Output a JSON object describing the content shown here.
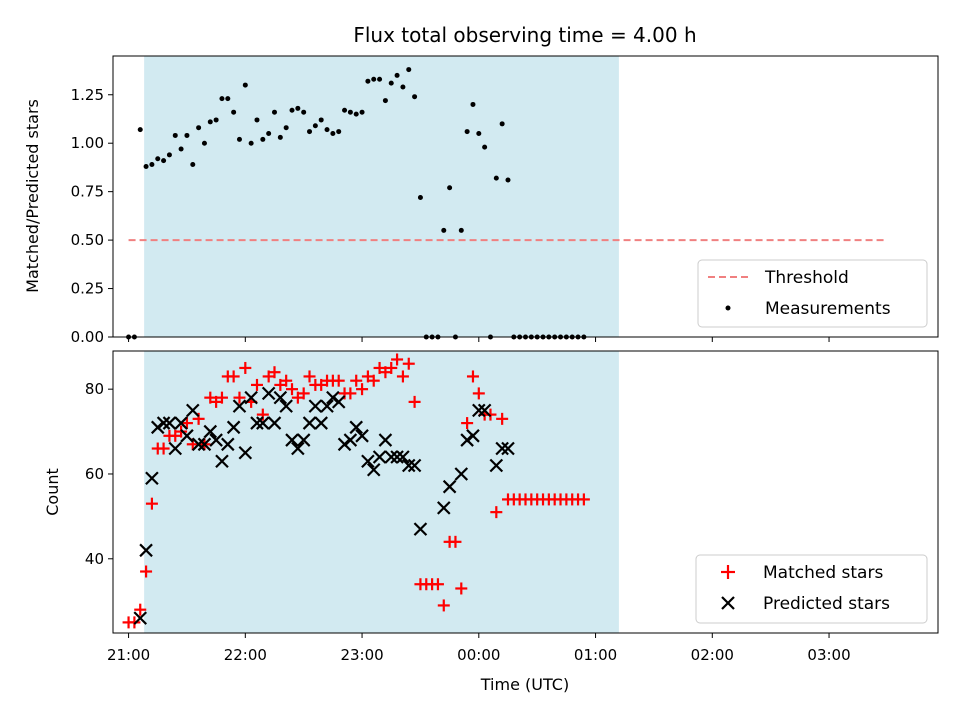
{
  "chart_data": [
    {
      "type": "scatter",
      "title": "Flux total observing time = 4.00 h",
      "xlabel": "",
      "ylabel": "Matched/Predicted stars",
      "ylim": [
        0,
        1.45
      ],
      "yticks": [
        "0.00",
        "0.25",
        "0.50",
        "0.75",
        "1.00",
        "1.25"
      ],
      "xlim": [
        "20:52",
        "03:56"
      ],
      "shaded_interval": [
        "21:08",
        "01:12"
      ],
      "shade_color": "#add8e6",
      "legend_placement": "lower-right",
      "legend": [
        "Threshold",
        "Measurements"
      ],
      "threshold": {
        "name": "Threshold",
        "y": 0.5,
        "x_from": "21:00",
        "x_to": "03:30",
        "color": "#f08080",
        "style": "dashed"
      },
      "series": [
        {
          "name": "Measurements",
          "color": "#000000",
          "marker": "dot",
          "points": [
            [
              "21:00",
              0
            ],
            [
              "21:03",
              0
            ],
            [
              "21:06",
              1.07
            ],
            [
              "21:09",
              0.88
            ],
            [
              "21:12",
              0.89
            ],
            [
              "21:15",
              0.92
            ],
            [
              "21:18",
              0.91
            ],
            [
              "21:21",
              0.94
            ],
            [
              "21:24",
              1.04
            ],
            [
              "21:27",
              0.97
            ],
            [
              "21:30",
              1.04
            ],
            [
              "21:33",
              0.89
            ],
            [
              "21:36",
              1.08
            ],
            [
              "21:39",
              1.0
            ],
            [
              "21:42",
              1.11
            ],
            [
              "21:45",
              1.12
            ],
            [
              "21:48",
              1.23
            ],
            [
              "21:51",
              1.23
            ],
            [
              "21:54",
              1.16
            ],
            [
              "21:57",
              1.02
            ],
            [
              "22:00",
              1.3
            ],
            [
              "22:03",
              1.0
            ],
            [
              "22:06",
              1.12
            ],
            [
              "22:09",
              1.02
            ],
            [
              "22:12",
              1.05
            ],
            [
              "22:15",
              1.16
            ],
            [
              "22:18",
              1.03
            ],
            [
              "22:21",
              1.08
            ],
            [
              "22:24",
              1.17
            ],
            [
              "22:27",
              1.18
            ],
            [
              "22:30",
              1.16
            ],
            [
              "22:33",
              1.06
            ],
            [
              "22:36",
              1.09
            ],
            [
              "22:39",
              1.12
            ],
            [
              "22:42",
              1.07
            ],
            [
              "22:45",
              1.05
            ],
            [
              "22:48",
              1.06
            ],
            [
              "22:51",
              1.17
            ],
            [
              "22:54",
              1.16
            ],
            [
              "22:57",
              1.15
            ],
            [
              "23:00",
              1.16
            ],
            [
              "23:03",
              1.32
            ],
            [
              "23:06",
              1.33
            ],
            [
              "23:09",
              1.33
            ],
            [
              "23:12",
              1.22
            ],
            [
              "23:15",
              1.31
            ],
            [
              "23:18",
              1.35
            ],
            [
              "23:21",
              1.29
            ],
            [
              "23:24",
              1.38
            ],
            [
              "23:27",
              1.24
            ],
            [
              "23:30",
              0.72
            ],
            [
              "23:33",
              0
            ],
            [
              "23:36",
              0
            ],
            [
              "23:39",
              0
            ],
            [
              "23:42",
              0.55
            ],
            [
              "23:45",
              0.77
            ],
            [
              "23:48",
              0
            ],
            [
              "23:51",
              0.55
            ],
            [
              "23:54",
              1.06
            ],
            [
              "23:57",
              1.2
            ],
            [
              "00:00",
              1.05
            ],
            [
              "00:03",
              0.98
            ],
            [
              "00:06",
              0
            ],
            [
              "00:09",
              0.82
            ],
            [
              "00:12",
              1.1
            ],
            [
              "00:15",
              0.81
            ],
            [
              "00:18",
              0
            ],
            [
              "00:21",
              0
            ],
            [
              "00:24",
              0
            ],
            [
              "00:27",
              0
            ],
            [
              "00:30",
              0
            ],
            [
              "00:33",
              0
            ],
            [
              "00:36",
              0
            ],
            [
              "00:39",
              0
            ],
            [
              "00:42",
              0
            ],
            [
              "00:45",
              0
            ],
            [
              "00:48",
              0
            ],
            [
              "00:51",
              0
            ],
            [
              "00:54",
              0
            ]
          ]
        }
      ]
    },
    {
      "type": "scatter",
      "title": "",
      "xlabel": "Time (UTC)",
      "ylabel": "Count",
      "ylim": [
        22.5,
        89
      ],
      "yticks": [
        "40",
        "60",
        "80"
      ],
      "xticks": [
        "21:00",
        "22:00",
        "23:00",
        "00:00",
        "01:00",
        "02:00",
        "03:00"
      ],
      "xlim": [
        "20:52",
        "03:56"
      ],
      "shaded_interval": [
        "21:08",
        "01:12"
      ],
      "shade_color": "#add8e6",
      "legend_placement": "lower-right",
      "legend": [
        "Matched stars",
        "Predicted stars"
      ],
      "series": [
        {
          "name": "Matched stars",
          "color": "#ff0000",
          "marker": "plus",
          "points": [
            [
              "21:00",
              25
            ],
            [
              "21:03",
              25
            ],
            [
              "21:06",
              28
            ],
            [
              "21:09",
              37
            ],
            [
              "21:12",
              53
            ],
            [
              "21:15",
              66
            ],
            [
              "21:18",
              66
            ],
            [
              "21:21",
              69
            ],
            [
              "21:24",
              69
            ],
            [
              "21:27",
              70
            ],
            [
              "21:30",
              72
            ],
            [
              "21:33",
              67
            ],
            [
              "21:36",
              73
            ],
            [
              "21:39",
              67
            ],
            [
              "21:42",
              78
            ],
            [
              "21:45",
              77
            ],
            [
              "21:48",
              78
            ],
            [
              "21:51",
              83
            ],
            [
              "21:54",
              83
            ],
            [
              "21:57",
              78
            ],
            [
              "22:00",
              85
            ],
            [
              "22:03",
              77
            ],
            [
              "22:06",
              81
            ],
            [
              "22:09",
              74
            ],
            [
              "22:12",
              83
            ],
            [
              "22:15",
              84
            ],
            [
              "22:18",
              81
            ],
            [
              "22:21",
              82
            ],
            [
              "22:24",
              80
            ],
            [
              "22:27",
              78
            ],
            [
              "22:30",
              79
            ],
            [
              "22:33",
              83
            ],
            [
              "22:36",
              81
            ],
            [
              "22:39",
              81
            ],
            [
              "22:42",
              82
            ],
            [
              "22:45",
              82
            ],
            [
              "22:48",
              82
            ],
            [
              "22:51",
              79
            ],
            [
              "22:54",
              79
            ],
            [
              "22:57",
              82
            ],
            [
              "23:00",
              80
            ],
            [
              "23:03",
              83
            ],
            [
              "23:06",
              82
            ],
            [
              "23:09",
              85
            ],
            [
              "23:12",
              84
            ],
            [
              "23:15",
              85
            ],
            [
              "23:18",
              87
            ],
            [
              "23:21",
              83
            ],
            [
              "23:24",
              86
            ],
            [
              "23:27",
              77
            ],
            [
              "23:30",
              34
            ],
            [
              "23:33",
              34
            ],
            [
              "23:36",
              34
            ],
            [
              "23:39",
              34
            ],
            [
              "23:42",
              29
            ],
            [
              "23:45",
              44
            ],
            [
              "23:48",
              44
            ],
            [
              "23:51",
              33
            ],
            [
              "23:54",
              72
            ],
            [
              "23:57",
              83
            ],
            [
              "00:00",
              79
            ],
            [
              "00:03",
              74
            ],
            [
              "00:06",
              74
            ],
            [
              "00:09",
              51
            ],
            [
              "00:12",
              73
            ],
            [
              "00:15",
              54
            ],
            [
              "00:18",
              54
            ],
            [
              "00:21",
              54
            ],
            [
              "00:24",
              54
            ],
            [
              "00:27",
              54
            ],
            [
              "00:30",
              54
            ],
            [
              "00:33",
              54
            ],
            [
              "00:36",
              54
            ],
            [
              "00:39",
              54
            ],
            [
              "00:42",
              54
            ],
            [
              "00:45",
              54
            ],
            [
              "00:48",
              54
            ],
            [
              "00:51",
              54
            ],
            [
              "00:54",
              54
            ]
          ]
        },
        {
          "name": "Predicted stars",
          "color": "#000000",
          "marker": "x",
          "points": [
            [
              "21:06",
              26
            ],
            [
              "21:09",
              42
            ],
            [
              "21:12",
              59
            ],
            [
              "21:15",
              71
            ],
            [
              "21:18",
              72
            ],
            [
              "21:21",
              72
            ],
            [
              "21:24",
              66
            ],
            [
              "21:27",
              72
            ],
            [
              "21:30",
              69
            ],
            [
              "21:33",
              75
            ],
            [
              "21:36",
              67
            ],
            [
              "21:39",
              67
            ],
            [
              "21:42",
              70
            ],
            [
              "21:45",
              68
            ],
            [
              "21:48",
              63
            ],
            [
              "21:51",
              67
            ],
            [
              "21:54",
              71
            ],
            [
              "21:57",
              76
            ],
            [
              "22:00",
              65
            ],
            [
              "22:03",
              78
            ],
            [
              "22:06",
              72
            ],
            [
              "22:09",
              72
            ],
            [
              "22:12",
              79
            ],
            [
              "22:15",
              72
            ],
            [
              "22:18",
              78
            ],
            [
              "22:21",
              76
            ],
            [
              "22:24",
              68
            ],
            [
              "22:27",
              66
            ],
            [
              "22:30",
              68
            ],
            [
              "22:33",
              72
            ],
            [
              "22:36",
              76
            ],
            [
              "22:39",
              72
            ],
            [
              "22:42",
              76
            ],
            [
              "22:45",
              78
            ],
            [
              "22:48",
              77
            ],
            [
              "22:51",
              67
            ],
            [
              "22:54",
              68
            ],
            [
              "22:57",
              71
            ],
            [
              "23:00",
              69
            ],
            [
              "23:03",
              63
            ],
            [
              "23:06",
              61
            ],
            [
              "23:09",
              64
            ],
            [
              "23:12",
              68
            ],
            [
              "23:15",
              64
            ],
            [
              "23:18",
              64
            ],
            [
              "23:21",
              64
            ],
            [
              "23:24",
              62
            ],
            [
              "23:27",
              62
            ],
            [
              "23:30",
              47
            ],
            [
              "23:42",
              52
            ],
            [
              "23:45",
              57
            ],
            [
              "23:51",
              60
            ],
            [
              "23:54",
              68
            ],
            [
              "23:57",
              69
            ],
            [
              "00:00",
              75
            ],
            [
              "00:03",
              75
            ],
            [
              "00:09",
              62
            ],
            [
              "00:12",
              66
            ],
            [
              "00:15",
              66
            ]
          ]
        }
      ]
    }
  ]
}
